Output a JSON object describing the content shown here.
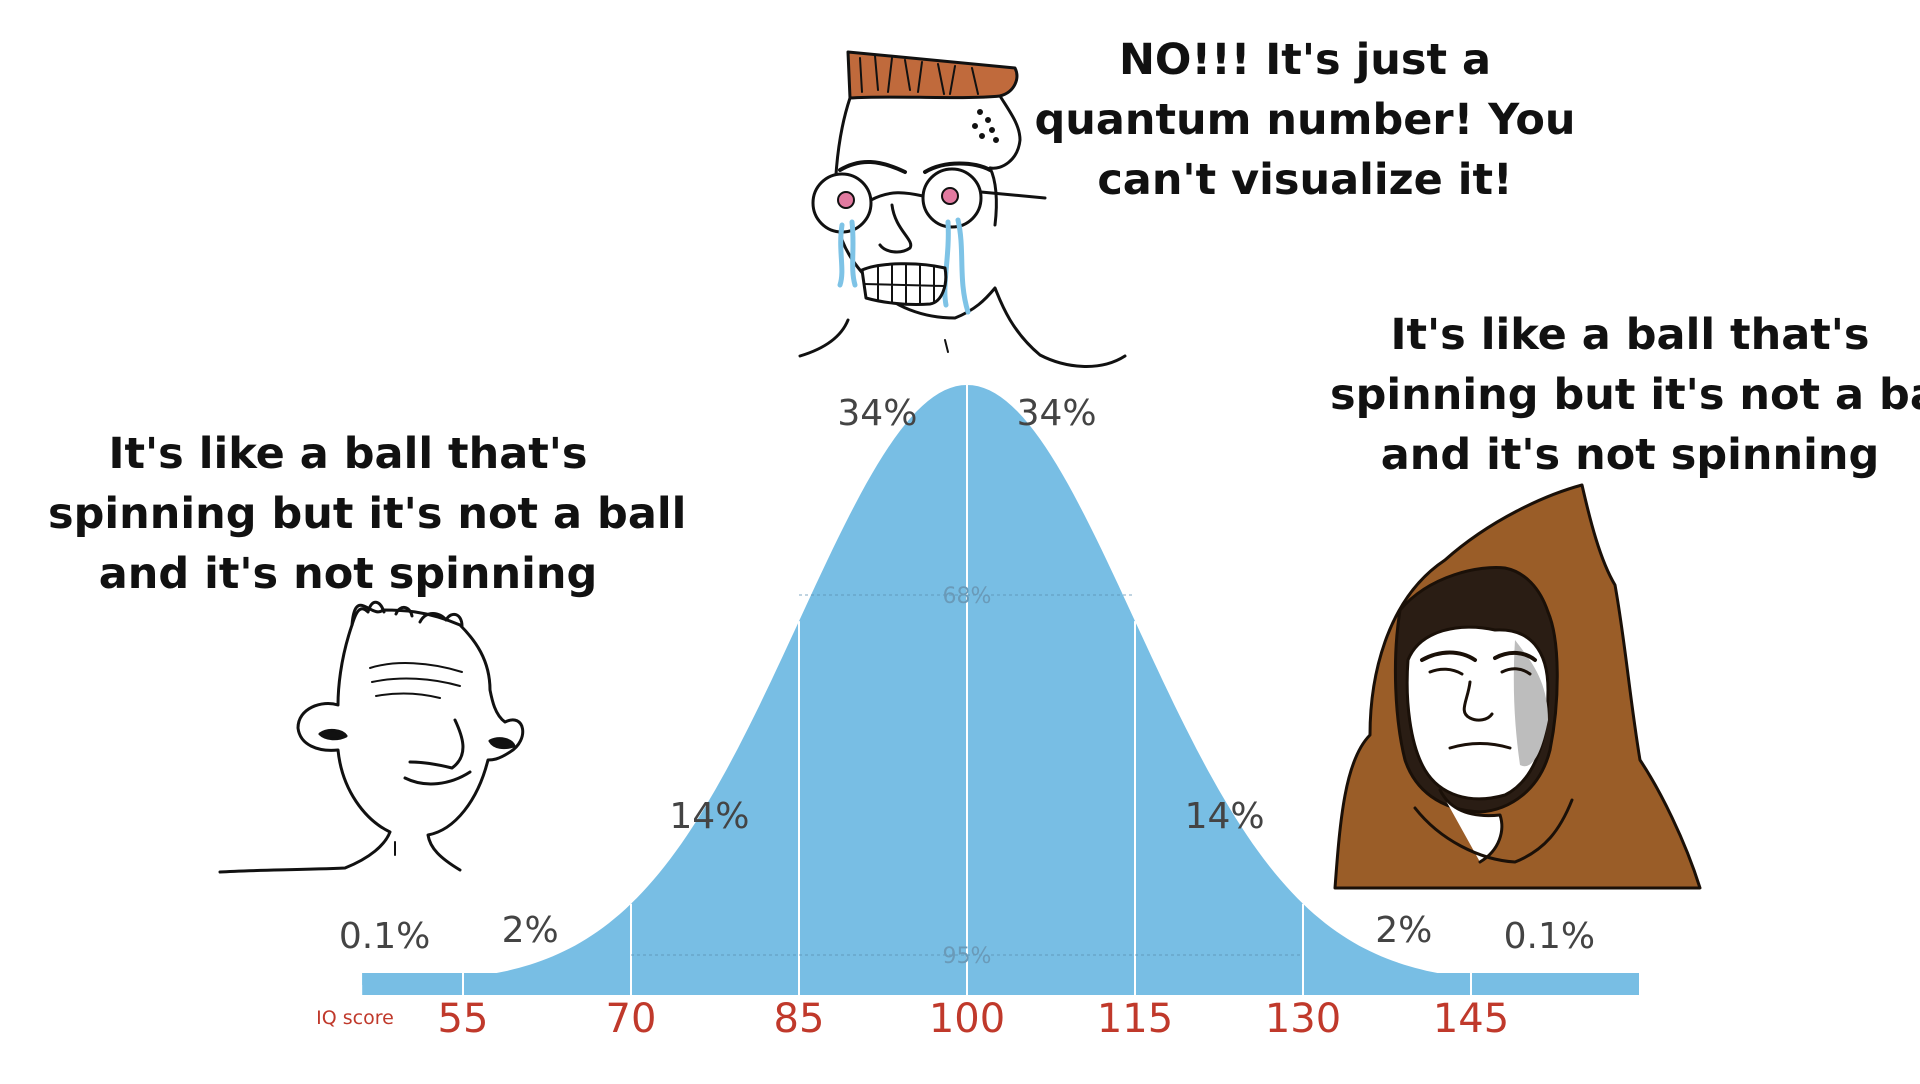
{
  "captions": {
    "left": [
      "It's like a ball that's",
      "spinning but it's not a ball",
      "and it's not spinning"
    ],
    "middle": [
      "NO!!! It's just a",
      "quantum number! You",
      "can't visualize it!"
    ],
    "right": [
      "It's like a ball that's",
      "spinning but it's not a ball",
      "and it's not spinning"
    ]
  },
  "characters": {
    "left": "wojak-low-iq-icon",
    "middle": "wojak-crying-glasses-icon",
    "right": "hooded-monk-high-iq-icon"
  },
  "chart_data": {
    "type": "area",
    "title": "",
    "xlabel": "IQ score",
    "ylabel": "",
    "distribution": "normal",
    "mean": 100,
    "sd": 15,
    "xlim": [
      46,
      160
    ],
    "x_ticks": [
      55,
      70,
      85,
      100,
      115,
      130,
      145
    ],
    "x_tick_labels": [
      "55",
      "70",
      "85",
      "100",
      "115",
      "130",
      "145"
    ],
    "segment_labels": [
      {
        "label": "0.1%",
        "x": 48
      },
      {
        "label": "2%",
        "x": 61
      },
      {
        "label": "14%",
        "x": 77
      },
      {
        "label": "34%",
        "x": 92
      },
      {
        "label": "34%",
        "x": 108
      },
      {
        "label": "14%",
        "x": 123
      },
      {
        "label": "2%",
        "x": 139
      },
      {
        "label": "0.1%",
        "x": 152
      }
    ],
    "bands": [
      {
        "label": "68%",
        "from": 85,
        "to": 115
      },
      {
        "label": "95%",
        "from": 70,
        "to": 130
      }
    ],
    "colors": {
      "fill": "#78bee4",
      "tick_label": "#c0392b",
      "divider": "#ffffff",
      "text": "#444444"
    }
  }
}
